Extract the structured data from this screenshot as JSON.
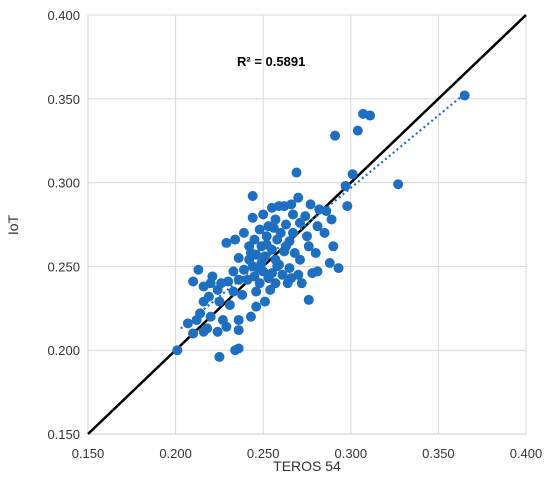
{
  "chart_data": {
    "type": "scatter",
    "xlabel": "TEROS 54",
    "ylabel": "IoT",
    "xlim": [
      0.15,
      0.4
    ],
    "ylim": [
      0.15,
      0.4
    ],
    "x_ticks": [
      "0.150",
      "0.200",
      "0.250",
      "0.300",
      "0.350",
      "0.400"
    ],
    "y_ticks": [
      "0.150",
      "0.200",
      "0.250",
      "0.300",
      "0.350",
      "0.400"
    ],
    "grid": true,
    "annotation": "R² = 0.5891",
    "colors": {
      "points": "#1f6fc1",
      "identity_line": "#000000",
      "trendline": "#1f6fc1",
      "grid": "#d9d9d9"
    },
    "identity_line": {
      "x": [
        0.15,
        0.4
      ],
      "y": [
        0.15,
        0.4
      ]
    },
    "trendline": {
      "x": [
        0.203,
        0.365
      ],
      "y": [
        0.213,
        0.353
      ]
    },
    "series": [
      {
        "points": [
          [
            0.365,
            0.352
          ],
          [
            0.307,
            0.341
          ],
          [
            0.311,
            0.34
          ],
          [
            0.304,
            0.331
          ],
          [
            0.291,
            0.328
          ],
          [
            0.301,
            0.305
          ],
          [
            0.297,
            0.298
          ],
          [
            0.327,
            0.299
          ],
          [
            0.298,
            0.286
          ],
          [
            0.269,
            0.306
          ],
          [
            0.244,
            0.292
          ],
          [
            0.27,
            0.291
          ],
          [
            0.262,
            0.286
          ],
          [
            0.266,
            0.287
          ],
          [
            0.255,
            0.285
          ],
          [
            0.277,
            0.287
          ],
          [
            0.286,
            0.283
          ],
          [
            0.282,
            0.284
          ],
          [
            0.274,
            0.28
          ],
          [
            0.25,
            0.281
          ],
          [
            0.257,
            0.278
          ],
          [
            0.244,
            0.279
          ],
          [
            0.248,
            0.272
          ],
          [
            0.271,
            0.276
          ],
          [
            0.263,
            0.275
          ],
          [
            0.256,
            0.273
          ],
          [
            0.281,
            0.274
          ],
          [
            0.267,
            0.27
          ],
          [
            0.239,
            0.27
          ],
          [
            0.234,
            0.266
          ],
          [
            0.245,
            0.266
          ],
          [
            0.252,
            0.268
          ],
          [
            0.258,
            0.266
          ],
          [
            0.265,
            0.265
          ],
          [
            0.276,
            0.262
          ],
          [
            0.285,
            0.27
          ],
          [
            0.29,
            0.262
          ],
          [
            0.249,
            0.262
          ],
          [
            0.242,
            0.262
          ],
          [
            0.255,
            0.26
          ],
          [
            0.262,
            0.259
          ],
          [
            0.268,
            0.258
          ],
          [
            0.246,
            0.257
          ],
          [
            0.251,
            0.256
          ],
          [
            0.236,
            0.255
          ],
          [
            0.229,
            0.264
          ],
          [
            0.257,
            0.254
          ],
          [
            0.271,
            0.254
          ],
          [
            0.28,
            0.258
          ],
          [
            0.288,
            0.252
          ],
          [
            0.293,
            0.249
          ],
          [
            0.249,
            0.252
          ],
          [
            0.244,
            0.25
          ],
          [
            0.258,
            0.25
          ],
          [
            0.265,
            0.249
          ],
          [
            0.239,
            0.248
          ],
          [
            0.233,
            0.247
          ],
          [
            0.25,
            0.247
          ],
          [
            0.255,
            0.246
          ],
          [
            0.261,
            0.245
          ],
          [
            0.27,
            0.245
          ],
          [
            0.278,
            0.246
          ],
          [
            0.245,
            0.244
          ],
          [
            0.253,
            0.243
          ],
          [
            0.241,
            0.242
          ],
          [
            0.236,
            0.242
          ],
          [
            0.23,
            0.241
          ],
          [
            0.248,
            0.24
          ],
          [
            0.257,
            0.24
          ],
          [
            0.264,
            0.24
          ],
          [
            0.226,
            0.24
          ],
          [
            0.22,
            0.24
          ],
          [
            0.213,
            0.248
          ],
          [
            0.221,
            0.244
          ],
          [
            0.216,
            0.238
          ],
          [
            0.21,
            0.241
          ],
          [
            0.224,
            0.236
          ],
          [
            0.233,
            0.235
          ],
          [
            0.238,
            0.233
          ],
          [
            0.246,
            0.235
          ],
          [
            0.254,
            0.236
          ],
          [
            0.219,
            0.232
          ],
          [
            0.225,
            0.229
          ],
          [
            0.216,
            0.229
          ],
          [
            0.231,
            0.227
          ],
          [
            0.246,
            0.226
          ],
          [
            0.251,
            0.229
          ],
          [
            0.214,
            0.222
          ],
          [
            0.22,
            0.22
          ],
          [
            0.227,
            0.218
          ],
          [
            0.236,
            0.218
          ],
          [
            0.243,
            0.22
          ],
          [
            0.212,
            0.218
          ],
          [
            0.218,
            0.213
          ],
          [
            0.224,
            0.211
          ],
          [
            0.229,
            0.214
          ],
          [
            0.236,
            0.212
          ],
          [
            0.21,
            0.21
          ],
          [
            0.216,
            0.211
          ],
          [
            0.207,
            0.216
          ],
          [
            0.201,
            0.2
          ],
          [
            0.234,
            0.2
          ],
          [
            0.236,
            0.201
          ],
          [
            0.225,
            0.196
          ],
          [
            0.276,
            0.23
          ],
          [
            0.272,
            0.24
          ],
          [
            0.266,
            0.243
          ],
          [
            0.259,
            0.251
          ],
          [
            0.263,
            0.262
          ],
          [
            0.275,
            0.268
          ],
          [
            0.289,
            0.278
          ],
          [
            0.281,
            0.247
          ],
          [
            0.247,
            0.249
          ],
          [
            0.242,
            0.254
          ],
          [
            0.252,
            0.263
          ],
          [
            0.26,
            0.27
          ],
          [
            0.267,
            0.281
          ],
          [
            0.259,
            0.286
          ],
          [
            0.253,
            0.274
          ],
          [
            0.243,
            0.258
          ]
        ]
      }
    ]
  }
}
